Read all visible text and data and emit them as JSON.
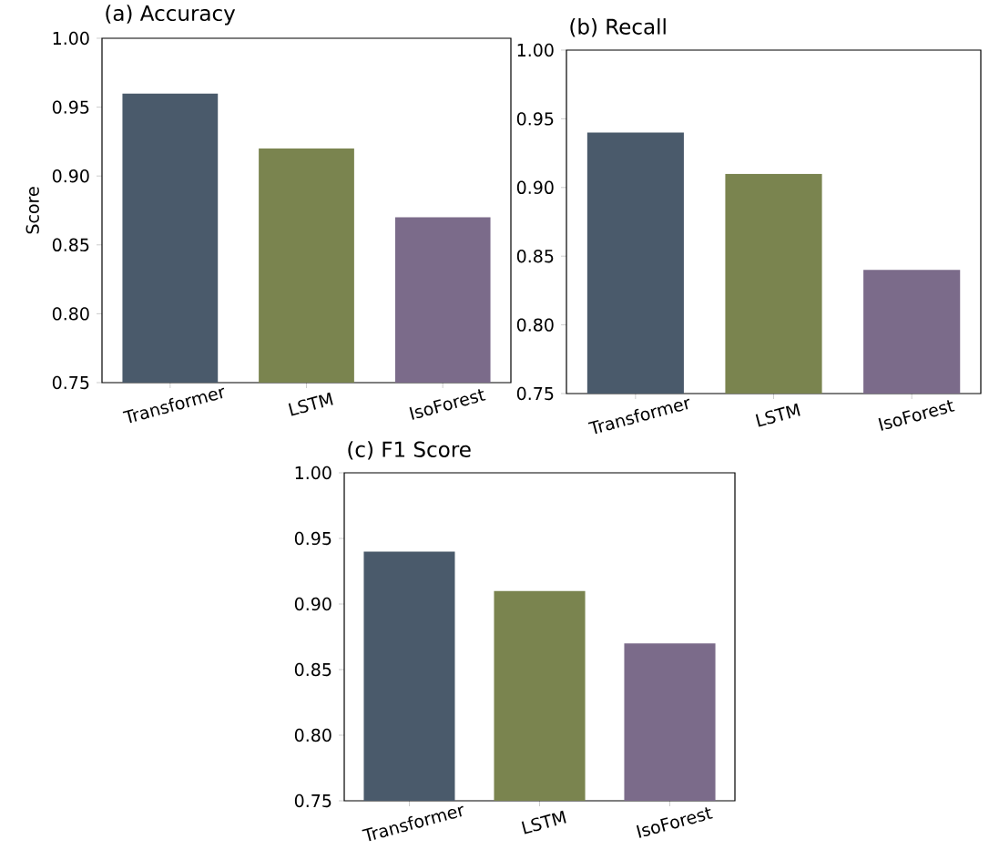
{
  "chart_data": [
    {
      "type": "bar",
      "title": "(a) Accuracy",
      "ylabel": "Score",
      "categories": [
        "Transformer",
        "LSTM",
        "IsoForest"
      ],
      "values": [
        0.96,
        0.92,
        0.87
      ],
      "colors": [
        "#4a5a6b",
        "#7a844f",
        "#7b6b8a"
      ],
      "ylim": [
        0.75,
        1.0
      ],
      "yticks": [
        {
          "value": 0.75,
          "label": "0.75"
        },
        {
          "value": 0.8,
          "label": "0.80"
        },
        {
          "value": 0.85,
          "label": "0.85"
        },
        {
          "value": 0.9,
          "label": "0.90"
        },
        {
          "value": 0.95,
          "label": "0.95"
        },
        {
          "value": 1.0,
          "label": "1.00"
        }
      ]
    },
    {
      "type": "bar",
      "title": "(b) Recall",
      "categories": [
        "Transformer",
        "LSTM",
        "IsoForest"
      ],
      "values": [
        0.94,
        0.91,
        0.84
      ],
      "colors": [
        "#4a5a6b",
        "#7a844f",
        "#7b6b8a"
      ],
      "ylim": [
        0.75,
        1.0
      ],
      "yticks": [
        {
          "value": 0.75,
          "label": "0.75"
        },
        {
          "value": 0.8,
          "label": "0.80"
        },
        {
          "value": 0.85,
          "label": "0.85"
        },
        {
          "value": 0.9,
          "label": "0.90"
        },
        {
          "value": 0.95,
          "label": "0.95"
        },
        {
          "value": 1.0,
          "label": "1.00"
        }
      ]
    },
    {
      "type": "bar",
      "title": "(c) F1 Score",
      "categories": [
        "Transformer",
        "LSTM",
        "IsoForest"
      ],
      "values": [
        0.94,
        0.91,
        0.87
      ],
      "colors": [
        "#4a5a6b",
        "#7a844f",
        "#7b6b8a"
      ],
      "ylim": [
        0.75,
        1.0
      ],
      "yticks": [
        {
          "value": 0.75,
          "label": "0.75"
        },
        {
          "value": 0.8,
          "label": "0.80"
        },
        {
          "value": 0.85,
          "label": "0.85"
        },
        {
          "value": 0.9,
          "label": "0.90"
        },
        {
          "value": 0.95,
          "label": "0.95"
        },
        {
          "value": 1.0,
          "label": "1.00"
        }
      ]
    }
  ]
}
